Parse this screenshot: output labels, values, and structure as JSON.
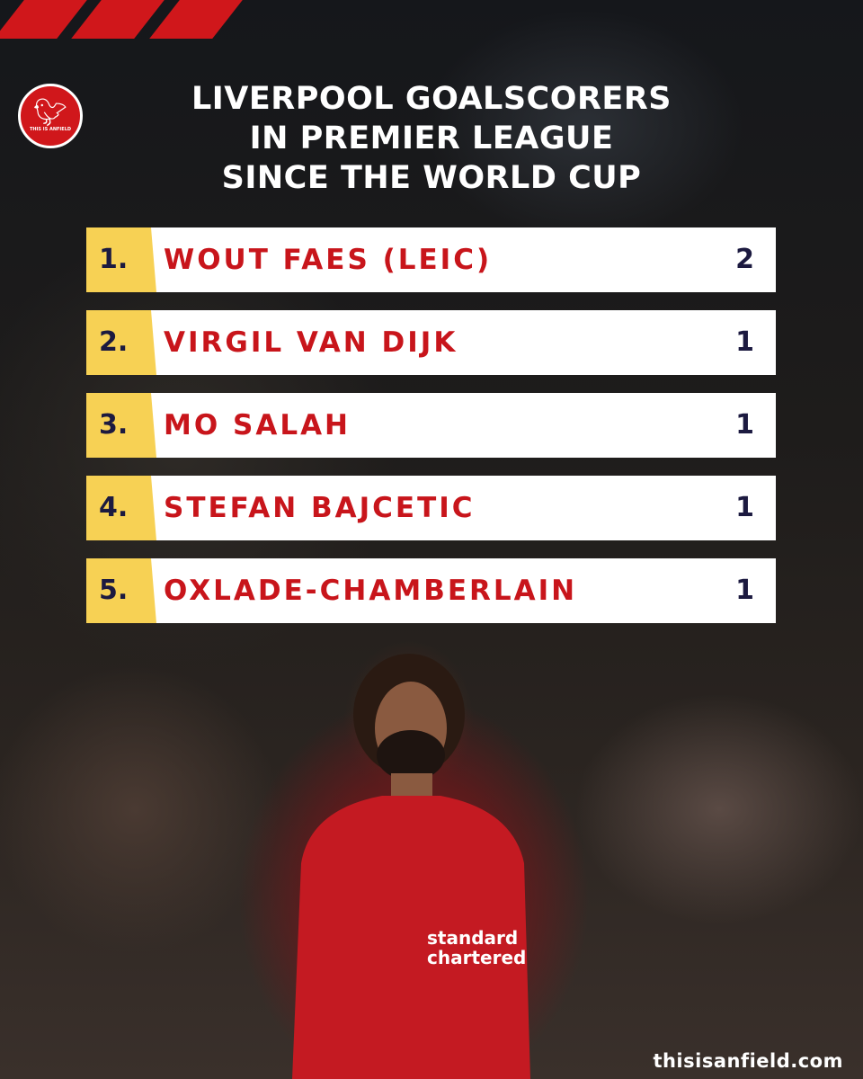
{
  "brand": {
    "logo_text": "THIS IS ANFIELD",
    "accent": "#d0171b",
    "rank_bg": "#f7d154",
    "website": "thisisanfield.com"
  },
  "title_lines": [
    "LIVERPOOL GOALSCORERS",
    "IN PREMIER LEAGUE",
    "SINCE THE WORLD CUP"
  ],
  "rows": [
    {
      "rank": "1.",
      "name": "WOUT FAES (LEIC)",
      "goals": "2"
    },
    {
      "rank": "2.",
      "name": "VIRGIL VAN DIJK",
      "goals": "1"
    },
    {
      "rank": "3.",
      "name": "MO SALAH",
      "goals": "1"
    },
    {
      "rank": "4.",
      "name": "STEFAN BAJCETIC",
      "goals": "1"
    },
    {
      "rank": "5.",
      "name": "OXLADE-CHAMBERLAIN",
      "goals": "1"
    }
  ],
  "shirt_sponsor": [
    "standard",
    "chartered"
  ]
}
